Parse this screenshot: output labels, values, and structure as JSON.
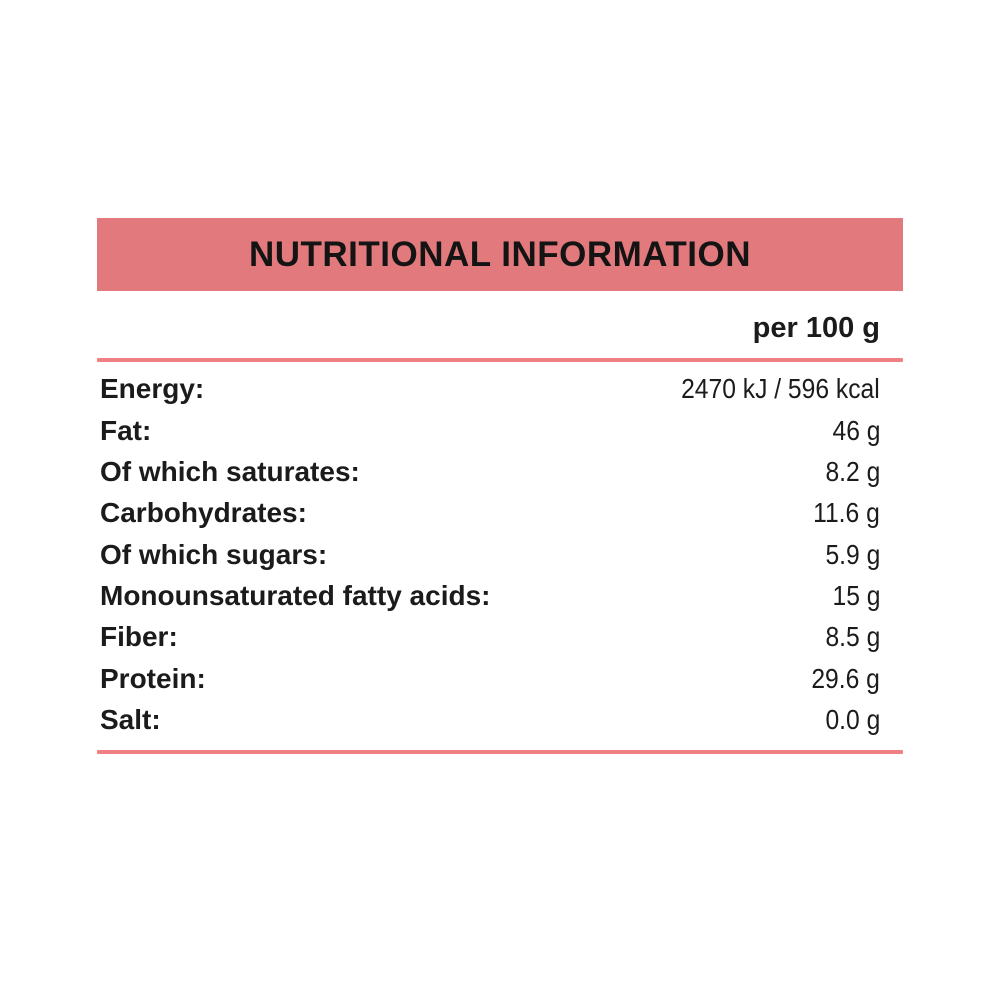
{
  "title": "NUTRITIONAL INFORMATION",
  "column_header": "per 100 g",
  "colors": {
    "header_bar": "#e2797c",
    "rule": "#ef8185",
    "text": "#1b1b1b",
    "background": "#ffffff"
  },
  "rows": [
    {
      "label": "Energy:",
      "value": "2470 kJ / 596 kcal"
    },
    {
      "label": "Fat:",
      "value": "46 g"
    },
    {
      "label": "Of which saturates:",
      "value": "8.2 g"
    },
    {
      "label": "Carbohydrates:",
      "value": "11.6 g"
    },
    {
      "label": "Of which sugars:",
      "value": "5.9 g"
    },
    {
      "label": "Monounsaturated fatty acids:",
      "value": "15 g"
    },
    {
      "label": "Fiber:",
      "value": "8.5 g"
    },
    {
      "label": "Protein:",
      "value": "29.6 g"
    },
    {
      "label": "Salt:",
      "value": "0.0 g"
    }
  ]
}
